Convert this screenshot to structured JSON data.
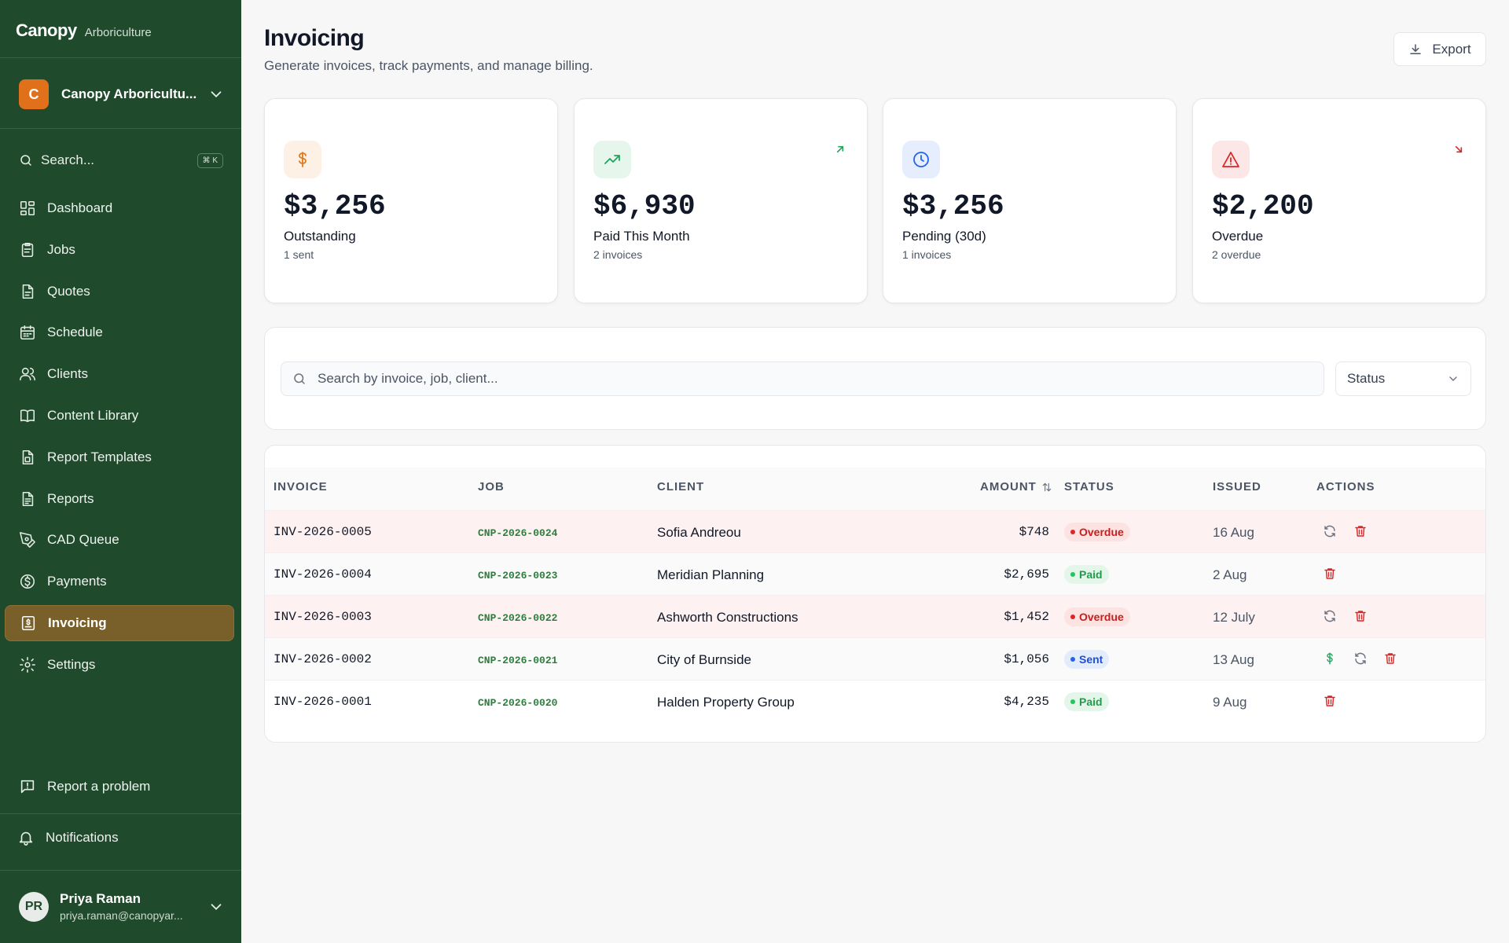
{
  "sidebar": {
    "brand": "Canopy",
    "brand_sub": "Arboriculture",
    "org_initial": "C",
    "org_name": "Canopy Arboricultu...",
    "search_placeholder": "Search...",
    "search_shortcut": "⌘ K",
    "items": [
      {
        "label": "Dashboard",
        "icon": "dashboard-icon"
      },
      {
        "label": "Jobs",
        "icon": "clipboard-icon"
      },
      {
        "label": "Quotes",
        "icon": "document-icon"
      },
      {
        "label": "Schedule",
        "icon": "calendar-icon"
      },
      {
        "label": "Clients",
        "icon": "users-icon"
      },
      {
        "label": "Content Library",
        "icon": "book-icon"
      },
      {
        "label": "Report Templates",
        "icon": "file-template-icon"
      },
      {
        "label": "Reports",
        "icon": "report-icon"
      },
      {
        "label": "CAD Queue",
        "icon": "pen-tool-icon"
      },
      {
        "label": "Payments",
        "icon": "dollar-circle-icon"
      },
      {
        "label": "Invoicing",
        "icon": "invoice-icon",
        "active": true
      },
      {
        "label": "Settings",
        "icon": "gear-icon"
      }
    ],
    "report_problem": "Report a problem",
    "notifications": "Notifications",
    "user": {
      "initials": "PR",
      "name": "Priya Raman",
      "email": "priya.raman@canopyar..."
    }
  },
  "header": {
    "title": "Invoicing",
    "subtitle": "Generate invoices, track payments, and manage billing.",
    "export_label": "Export"
  },
  "stats": [
    {
      "value": "$3,256",
      "label": "Outstanding",
      "sub": "1 sent",
      "icon": "dollar-icon",
      "color": "#e07a1f",
      "bg": "#fdf0e4"
    },
    {
      "value": "$6,930",
      "label": "Paid This Month",
      "sub": "2 invoices",
      "icon": "trending-up-icon",
      "color": "#22a35a",
      "bg": "#e6f6ec",
      "trend": "up"
    },
    {
      "value": "$3,256",
      "label": "Pending (30d)",
      "sub": "1 invoices",
      "icon": "clock-icon",
      "color": "#2563eb",
      "bg": "#e6edfc"
    },
    {
      "value": "$2,200",
      "label": "Overdue",
      "sub": "2 overdue",
      "icon": "alert-triangle-icon",
      "color": "#dc2626",
      "bg": "#fde6e6",
      "trend": "down"
    }
  ],
  "filters": {
    "search_placeholder": "Search by invoice, job, client...",
    "status_label": "Status"
  },
  "table": {
    "headers": {
      "invoice": "INVOICE",
      "job": "JOB",
      "client": "CLIENT",
      "amount": "AMOUNT",
      "status": "STATUS",
      "issued": "ISSUED",
      "actions": "ACTIONS"
    },
    "rows": [
      {
        "invoice": "INV-2026-0005",
        "job": "CNP-2026-0024",
        "client": "Sofia Andreou",
        "amount": "$748",
        "status": "Overdue",
        "issued": "16 Aug"
      },
      {
        "invoice": "INV-2026-0004",
        "job": "CNP-2026-0023",
        "client": "Meridian Planning",
        "amount": "$2,695",
        "status": "Paid",
        "issued": "2 Aug"
      },
      {
        "invoice": "INV-2026-0003",
        "job": "CNP-2026-0022",
        "client": "Ashworth Constructions",
        "amount": "$1,452",
        "status": "Overdue",
        "issued": "12 July"
      },
      {
        "invoice": "INV-2026-0002",
        "job": "CNP-2026-0021",
        "client": "City of Burnside",
        "amount": "$1,056",
        "status": "Sent",
        "issued": "13 Aug"
      },
      {
        "invoice": "INV-2026-0001",
        "job": "CNP-2026-0020",
        "client": "Halden Property Group",
        "amount": "$4,235",
        "status": "Paid",
        "issued": "9 Aug"
      }
    ]
  }
}
